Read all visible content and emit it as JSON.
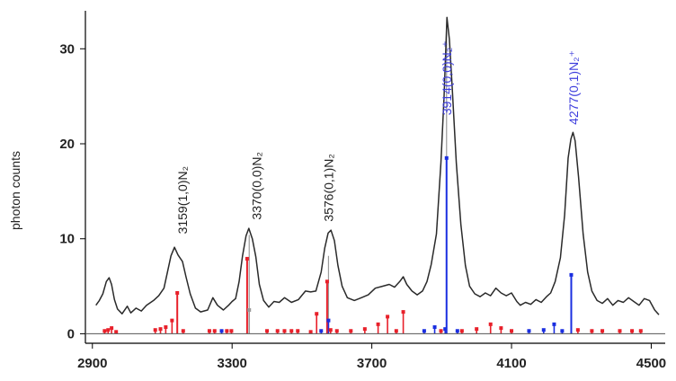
{
  "chart_data": {
    "type": "line",
    "title": "",
    "xlabel": "",
    "ylabel": "photon counts",
    "xlim": [
      2880,
      4540
    ],
    "ylim": [
      -1,
      34
    ],
    "grid": false,
    "x_ticks": [
      2900,
      3300,
      3700,
      4100,
      4500
    ],
    "x_tick_labels": [
      "2900",
      "3300",
      "3700",
      "4100",
      "4500"
    ],
    "y_ticks": [
      0,
      10,
      20,
      30
    ],
    "y_tick_labels": [
      "0",
      "10",
      "20",
      "30"
    ],
    "colors": {
      "spectrum": "#2a2a2a",
      "stick_red": "#e8202a",
      "stick_blue": "#1a2ee0",
      "stick_gray": "#9a9a9a",
      "label_black": "#222222",
      "label_blue": "#3d3ddd",
      "axis": "#000000"
    },
    "series": [
      {
        "type": "line",
        "color": "#2a2a2a",
        "points": [
          [
            2910,
            3.0
          ],
          [
            2920,
            3.5
          ],
          [
            2930,
            4.2
          ],
          [
            2940,
            5.5
          ],
          [
            2948,
            5.9
          ],
          [
            2955,
            5.2
          ],
          [
            2963,
            3.6
          ],
          [
            2972,
            2.6
          ],
          [
            2985,
            2.1
          ],
          [
            3000,
            2.9
          ],
          [
            3010,
            2.2
          ],
          [
            3025,
            2.7
          ],
          [
            3040,
            2.4
          ],
          [
            3055,
            3.0
          ],
          [
            3075,
            3.5
          ],
          [
            3090,
            4.0
          ],
          [
            3105,
            4.8
          ],
          [
            3115,
            6.5
          ],
          [
            3125,
            8.2
          ],
          [
            3135,
            9.1
          ],
          [
            3145,
            8.3
          ],
          [
            3158,
            7.6
          ],
          [
            3168,
            6.0
          ],
          [
            3180,
            4.2
          ],
          [
            3195,
            2.7
          ],
          [
            3210,
            2.3
          ],
          [
            3230,
            2.5
          ],
          [
            3245,
            3.8
          ],
          [
            3258,
            3.0
          ],
          [
            3275,
            2.5
          ],
          [
            3290,
            3.0
          ],
          [
            3300,
            3.4
          ],
          [
            3310,
            3.7
          ],
          [
            3320,
            5.5
          ],
          [
            3330,
            8.2
          ],
          [
            3340,
            10.3
          ],
          [
            3348,
            11.1
          ],
          [
            3358,
            10.0
          ],
          [
            3368,
            8.1
          ],
          [
            3378,
            5.2
          ],
          [
            3390,
            3.5
          ],
          [
            3405,
            2.8
          ],
          [
            3420,
            3.4
          ],
          [
            3435,
            3.3
          ],
          [
            3450,
            3.8
          ],
          [
            3470,
            3.3
          ],
          [
            3490,
            3.6
          ],
          [
            3510,
            4.5
          ],
          [
            3525,
            4.4
          ],
          [
            3540,
            4.5
          ],
          [
            3555,
            6.5
          ],
          [
            3565,
            9.0
          ],
          [
            3575,
            10.6
          ],
          [
            3583,
            10.9
          ],
          [
            3593,
            9.8
          ],
          [
            3603,
            7.2
          ],
          [
            3615,
            5.0
          ],
          [
            3630,
            3.8
          ],
          [
            3650,
            3.5
          ],
          [
            3670,
            3.8
          ],
          [
            3690,
            4.1
          ],
          [
            3710,
            4.8
          ],
          [
            3730,
            5.0
          ],
          [
            3750,
            5.2
          ],
          [
            3765,
            4.9
          ],
          [
            3780,
            5.5
          ],
          [
            3790,
            6.0
          ],
          [
            3800,
            5.2
          ],
          [
            3815,
            4.5
          ],
          [
            3830,
            4.1
          ],
          [
            3845,
            4.5
          ],
          [
            3858,
            5.5
          ],
          [
            3870,
            7.3
          ],
          [
            3885,
            10.5
          ],
          [
            3898,
            18.0
          ],
          [
            3907,
            25.0
          ],
          [
            3915,
            33.3
          ],
          [
            3922,
            31.0
          ],
          [
            3930,
            26.0
          ],
          [
            3942,
            18.0
          ],
          [
            3955,
            11.5
          ],
          [
            3968,
            7.2
          ],
          [
            3980,
            5.0
          ],
          [
            3995,
            4.2
          ],
          [
            4010,
            3.9
          ],
          [
            4025,
            4.3
          ],
          [
            4040,
            4.0
          ],
          [
            4055,
            4.8
          ],
          [
            4070,
            4.3
          ],
          [
            4085,
            4.0
          ],
          [
            4100,
            4.3
          ],
          [
            4115,
            3.4
          ],
          [
            4125,
            3.0
          ],
          [
            4140,
            3.3
          ],
          [
            4155,
            3.1
          ],
          [
            4170,
            3.6
          ],
          [
            4185,
            3.3
          ],
          [
            4200,
            3.9
          ],
          [
            4212,
            4.3
          ],
          [
            4225,
            5.5
          ],
          [
            4240,
            8.0
          ],
          [
            4252,
            12.5
          ],
          [
            4262,
            18.5
          ],
          [
            4270,
            20.5
          ],
          [
            4276,
            21.2
          ],
          [
            4282,
            20.3
          ],
          [
            4292,
            16.5
          ],
          [
            4305,
            10.5
          ],
          [
            4318,
            6.5
          ],
          [
            4330,
            4.5
          ],
          [
            4345,
            3.5
          ],
          [
            4360,
            3.2
          ],
          [
            4375,
            3.7
          ],
          [
            4390,
            3.0
          ],
          [
            4405,
            3.5
          ],
          [
            4420,
            3.3
          ],
          [
            4435,
            3.8
          ],
          [
            4450,
            3.4
          ],
          [
            4465,
            3.0
          ],
          [
            4480,
            3.7
          ],
          [
            4495,
            3.5
          ],
          [
            4510,
            2.5
          ],
          [
            4522,
            2.0
          ]
        ]
      }
    ],
    "sticks": [
      {
        "x": 2935,
        "y": 0.3,
        "color": "red"
      },
      {
        "x": 2945,
        "y": 0.4,
        "color": "red"
      },
      {
        "x": 2955,
        "y": 0.6,
        "color": "red"
      },
      {
        "x": 2968,
        "y": 0.2,
        "color": "red"
      },
      {
        "x": 3080,
        "y": 0.4,
        "color": "red"
      },
      {
        "x": 3095,
        "y": 0.5,
        "color": "red"
      },
      {
        "x": 3110,
        "y": 0.7,
        "color": "red"
      },
      {
        "x": 3128,
        "y": 1.4,
        "color": "red"
      },
      {
        "x": 3143,
        "y": 4.3,
        "color": "red"
      },
      {
        "x": 3160,
        "y": 0.3,
        "color": "red"
      },
      {
        "x": 3235,
        "y": 0.3,
        "color": "red"
      },
      {
        "x": 3250,
        "y": 0.3,
        "color": "red"
      },
      {
        "x": 3270,
        "y": 0.3,
        "color": "blue"
      },
      {
        "x": 3285,
        "y": 0.3,
        "color": "red"
      },
      {
        "x": 3298,
        "y": 0.3,
        "color": "red"
      },
      {
        "x": 3343,
        "y": 7.9,
        "color": "red"
      },
      {
        "x": 3349,
        "y": 2.5,
        "color": "gray"
      },
      {
        "x": 3400,
        "y": 0.3,
        "color": "red"
      },
      {
        "x": 3430,
        "y": 0.3,
        "color": "red"
      },
      {
        "x": 3450,
        "y": 0.3,
        "color": "red"
      },
      {
        "x": 3470,
        "y": 0.3,
        "color": "red"
      },
      {
        "x": 3488,
        "y": 0.3,
        "color": "red"
      },
      {
        "x": 3525,
        "y": 0.2,
        "color": "red"
      },
      {
        "x": 3542,
        "y": 2.1,
        "color": "red"
      },
      {
        "x": 3555,
        "y": 0.3,
        "color": "blue"
      },
      {
        "x": 3572,
        "y": 5.5,
        "color": "red"
      },
      {
        "x": 3576,
        "y": 1.4,
        "color": "blue"
      },
      {
        "x": 3582,
        "y": 0.4,
        "color": "red"
      },
      {
        "x": 3600,
        "y": 0.3,
        "color": "red"
      },
      {
        "x": 3640,
        "y": 0.3,
        "color": "red"
      },
      {
        "x": 3680,
        "y": 0.5,
        "color": "red"
      },
      {
        "x": 3718,
        "y": 1.0,
        "color": "red"
      },
      {
        "x": 3745,
        "y": 1.8,
        "color": "red"
      },
      {
        "x": 3770,
        "y": 0.3,
        "color": "red"
      },
      {
        "x": 3790,
        "y": 2.3,
        "color": "red"
      },
      {
        "x": 3850,
        "y": 0.3,
        "color": "blue"
      },
      {
        "x": 3880,
        "y": 0.7,
        "color": "blue"
      },
      {
        "x": 3898,
        "y": 0.3,
        "color": "red"
      },
      {
        "x": 3910,
        "y": 0.5,
        "color": "blue"
      },
      {
        "x": 3914,
        "y": 18.5,
        "color": "blue"
      },
      {
        "x": 3945,
        "y": 0.3,
        "color": "blue"
      },
      {
        "x": 3958,
        "y": 0.3,
        "color": "red"
      },
      {
        "x": 4000,
        "y": 0.5,
        "color": "red"
      },
      {
        "x": 4040,
        "y": 1.0,
        "color": "red"
      },
      {
        "x": 4070,
        "y": 0.6,
        "color": "red"
      },
      {
        "x": 4100,
        "y": 0.3,
        "color": "red"
      },
      {
        "x": 4150,
        "y": 0.3,
        "color": "blue"
      },
      {
        "x": 4192,
        "y": 0.4,
        "color": "blue"
      },
      {
        "x": 4222,
        "y": 1.0,
        "color": "blue"
      },
      {
        "x": 4245,
        "y": 0.3,
        "color": "blue"
      },
      {
        "x": 4271,
        "y": 6.2,
        "color": "blue"
      },
      {
        "x": 4290,
        "y": 0.4,
        "color": "red"
      },
      {
        "x": 4330,
        "y": 0.3,
        "color": "red"
      },
      {
        "x": 4360,
        "y": 0.3,
        "color": "red"
      },
      {
        "x": 4410,
        "y": 0.3,
        "color": "red"
      },
      {
        "x": 4445,
        "y": 0.3,
        "color": "red"
      },
      {
        "x": 4470,
        "y": 0.3,
        "color": "red"
      }
    ],
    "gray_drop_lines": [
      {
        "x": 3349,
        "top": 10.4
      },
      {
        "x": 3576,
        "top": 8.2
      },
      {
        "x": 3914,
        "top": 32.0
      }
    ],
    "annotations": [
      {
        "x": 3158,
        "y": 10.5,
        "text": "3159(1,0)N₂",
        "color": "black"
      },
      {
        "x": 3370,
        "y": 12.0,
        "text": "3370(0,0)N₂",
        "color": "black"
      },
      {
        "x": 3576,
        "y": 11.8,
        "text": "3576(0,1)N₂",
        "color": "black"
      },
      {
        "x": 3914,
        "y": 23.0,
        "text": "3914(0,0)N₂⁺",
        "color": "blue"
      },
      {
        "x": 4277,
        "y": 22.0,
        "text": "4277(0,1)N₂⁺",
        "color": "blue"
      }
    ]
  }
}
